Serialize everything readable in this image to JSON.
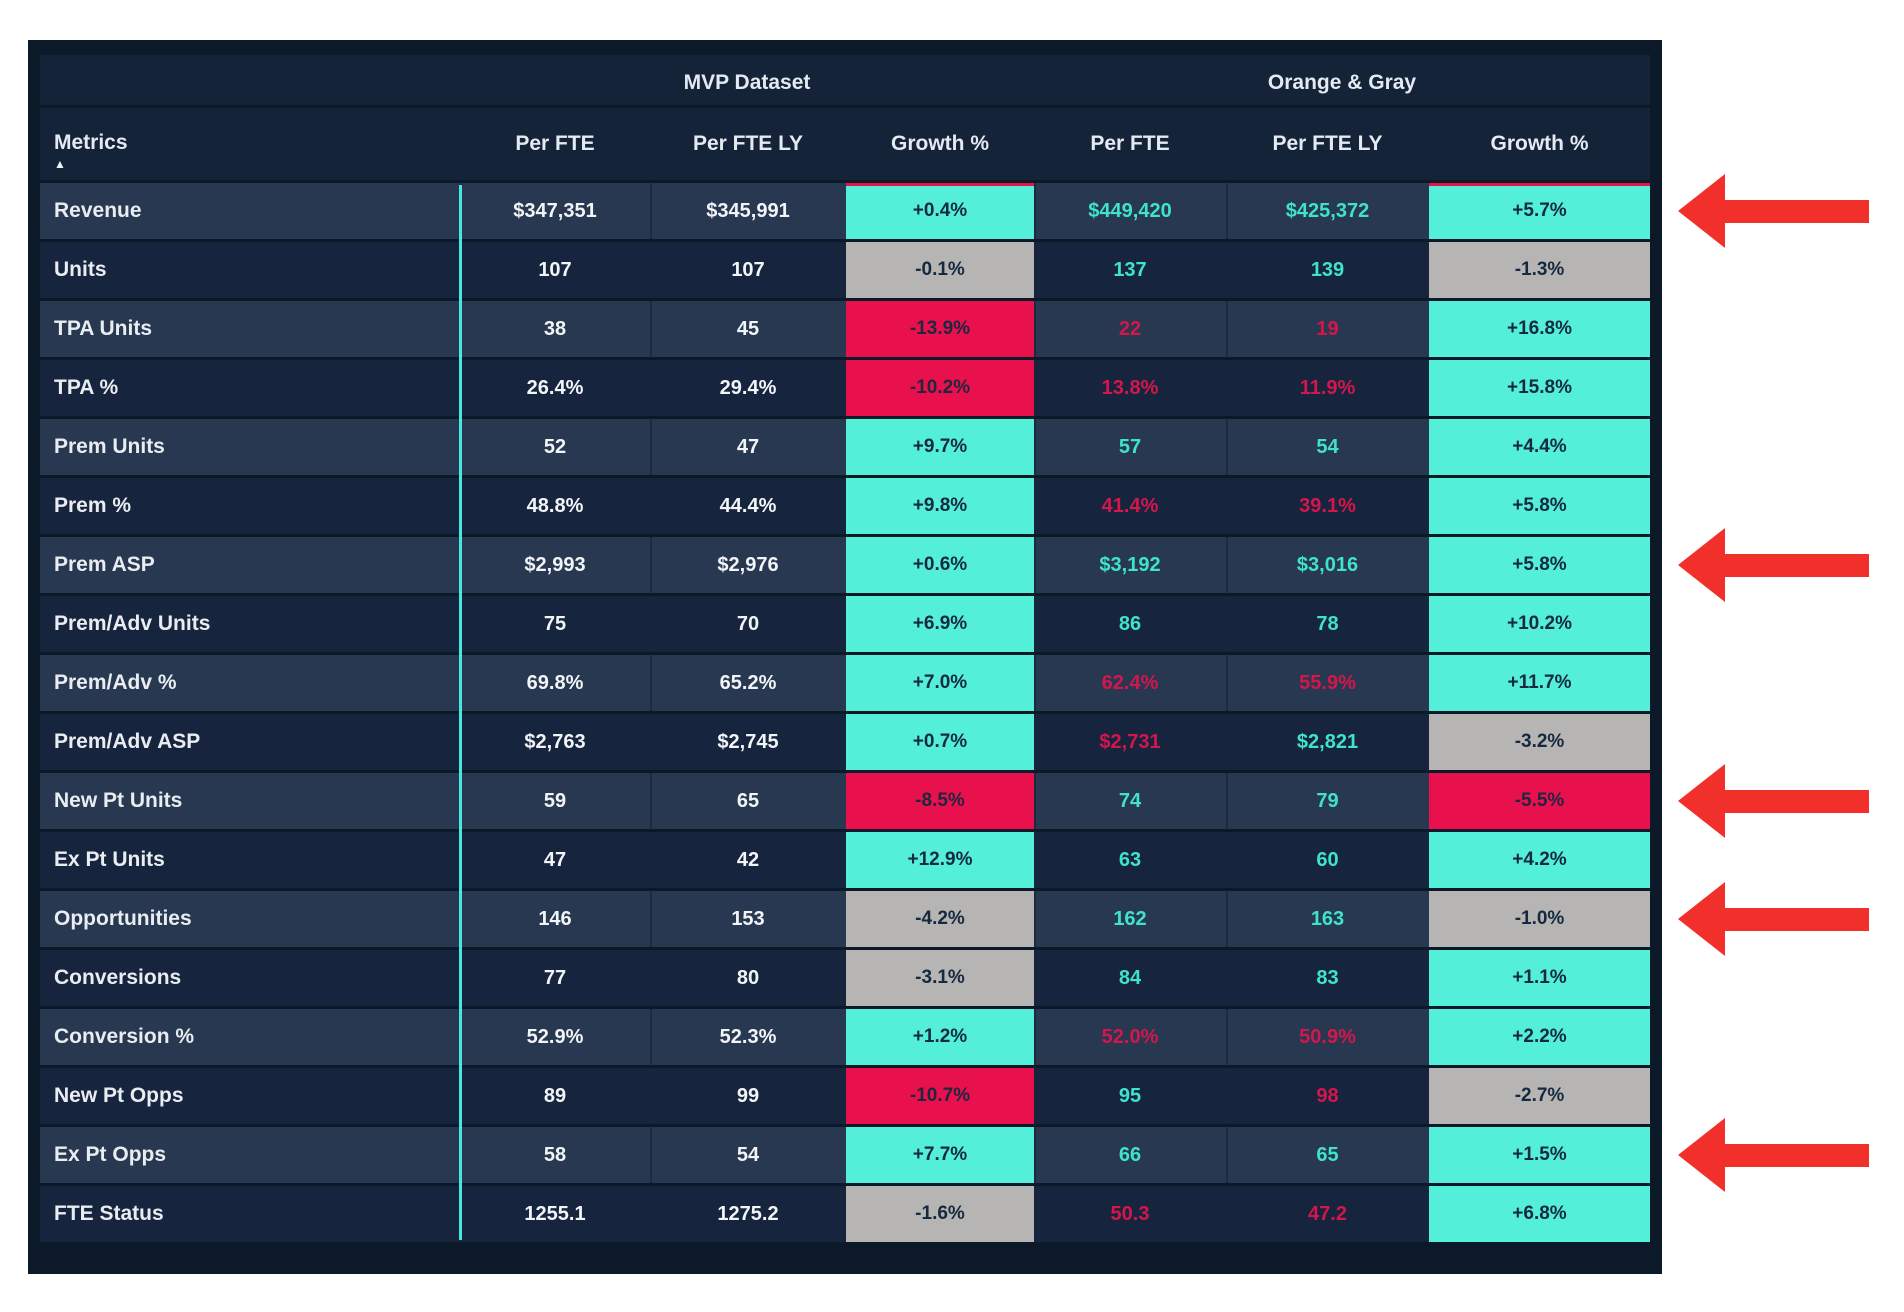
{
  "colors": {
    "table_bg": "#0c1929",
    "header_bg": "#152338",
    "row_light_bg": "#273850",
    "row_dark_bg": "#16243d",
    "growth_positive_bg": "#53efd9",
    "growth_neutral_bg": "#b7b5b3",
    "growth_negative_bg": "#e9114d",
    "value_good_text": "#3fe2cc",
    "value_bad_text": "#d4164c",
    "metric_text": "#e9edf2",
    "teal_divider": "#45e8e0",
    "arrow_red": "#f2302b"
  },
  "chart_data": {
    "type": "table",
    "metrics_header": "Metrics",
    "sort_indicator": "ascending-triangle",
    "column_groups": [
      "MVP Dataset",
      "Orange & Gray"
    ],
    "sub_columns": [
      "Per FTE",
      "Per FTE LY",
      "Growth %"
    ],
    "rows": [
      {
        "metric": "Revenue",
        "mvp_fte": "$347,351",
        "mvp_fte_ly": "$345,991",
        "mvp_growth": "+0.4%",
        "mvp_growth_state": "up",
        "og_fte": "$449,420",
        "og_fte_color": "good",
        "og_fte_ly": "$425,372",
        "og_fte_ly_color": "good",
        "og_growth": "+5.7%",
        "og_growth_state": "up",
        "arrow": true
      },
      {
        "metric": "Units",
        "mvp_fte": "107",
        "mvp_fte_ly": "107",
        "mvp_growth": "-0.1%",
        "mvp_growth_state": "flat",
        "og_fte": "137",
        "og_fte_color": "good",
        "og_fte_ly": "139",
        "og_fte_ly_color": "good",
        "og_growth": "-1.3%",
        "og_growth_state": "flat",
        "arrow": false
      },
      {
        "metric": "TPA Units",
        "mvp_fte": "38",
        "mvp_fte_ly": "45",
        "mvp_growth": "-13.9%",
        "mvp_growth_state": "down",
        "og_fte": "22",
        "og_fte_color": "bad",
        "og_fte_ly": "19",
        "og_fte_ly_color": "bad",
        "og_growth": "+16.8%",
        "og_growth_state": "up",
        "arrow": false
      },
      {
        "metric": "TPA %",
        "mvp_fte": "26.4%",
        "mvp_fte_ly": "29.4%",
        "mvp_growth": "-10.2%",
        "mvp_growth_state": "down",
        "og_fte": "13.8%",
        "og_fte_color": "bad",
        "og_fte_ly": "11.9%",
        "og_fte_ly_color": "bad",
        "og_growth": "+15.8%",
        "og_growth_state": "up",
        "arrow": false
      },
      {
        "metric": "Prem Units",
        "mvp_fte": "52",
        "mvp_fte_ly": "47",
        "mvp_growth": "+9.7%",
        "mvp_growth_state": "up",
        "og_fte": "57",
        "og_fte_color": "good",
        "og_fte_ly": "54",
        "og_fte_ly_color": "good",
        "og_growth": "+4.4%",
        "og_growth_state": "up",
        "arrow": false
      },
      {
        "metric": "Prem %",
        "mvp_fte": "48.8%",
        "mvp_fte_ly": "44.4%",
        "mvp_growth": "+9.8%",
        "mvp_growth_state": "up",
        "og_fte": "41.4%",
        "og_fte_color": "bad",
        "og_fte_ly": "39.1%",
        "og_fte_ly_color": "bad",
        "og_growth": "+5.8%",
        "og_growth_state": "up",
        "arrow": false
      },
      {
        "metric": "Prem ASP",
        "mvp_fte": "$2,993",
        "mvp_fte_ly": "$2,976",
        "mvp_growth": "+0.6%",
        "mvp_growth_state": "up",
        "og_fte": "$3,192",
        "og_fte_color": "good",
        "og_fte_ly": "$3,016",
        "og_fte_ly_color": "good",
        "og_growth": "+5.8%",
        "og_growth_state": "up",
        "arrow": true
      },
      {
        "metric": "Prem/Adv Units",
        "mvp_fte": "75",
        "mvp_fte_ly": "70",
        "mvp_growth": "+6.9%",
        "mvp_growth_state": "up",
        "og_fte": "86",
        "og_fte_color": "good",
        "og_fte_ly": "78",
        "og_fte_ly_color": "good",
        "og_growth": "+10.2%",
        "og_growth_state": "up",
        "arrow": false
      },
      {
        "metric": "Prem/Adv %",
        "mvp_fte": "69.8%",
        "mvp_fte_ly": "65.2%",
        "mvp_growth": "+7.0%",
        "mvp_growth_state": "up",
        "og_fte": "62.4%",
        "og_fte_color": "bad",
        "og_fte_ly": "55.9%",
        "og_fte_ly_color": "bad",
        "og_growth": "+11.7%",
        "og_growth_state": "up",
        "arrow": false
      },
      {
        "metric": "Prem/Adv ASP",
        "mvp_fte": "$2,763",
        "mvp_fte_ly": "$2,745",
        "mvp_growth": "+0.7%",
        "mvp_growth_state": "up",
        "og_fte": "$2,731",
        "og_fte_color": "bad",
        "og_fte_ly": "$2,821",
        "og_fte_ly_color": "good",
        "og_growth": "-3.2%",
        "og_growth_state": "flat",
        "arrow": false
      },
      {
        "metric": "New Pt Units",
        "mvp_fte": "59",
        "mvp_fte_ly": "65",
        "mvp_growth": "-8.5%",
        "mvp_growth_state": "down",
        "og_fte": "74",
        "og_fte_color": "good",
        "og_fte_ly": "79",
        "og_fte_ly_color": "good",
        "og_growth": "-5.5%",
        "og_growth_state": "down",
        "arrow": true
      },
      {
        "metric": "Ex Pt Units",
        "mvp_fte": "47",
        "mvp_fte_ly": "42",
        "mvp_growth": "+12.9%",
        "mvp_growth_state": "up",
        "og_fte": "63",
        "og_fte_color": "good",
        "og_fte_ly": "60",
        "og_fte_ly_color": "good",
        "og_growth": "+4.2%",
        "og_growth_state": "up",
        "arrow": false
      },
      {
        "metric": "Opportunities",
        "mvp_fte": "146",
        "mvp_fte_ly": "153",
        "mvp_growth": "-4.2%",
        "mvp_growth_state": "flat",
        "og_fte": "162",
        "og_fte_color": "good",
        "og_fte_ly": "163",
        "og_fte_ly_color": "good",
        "og_growth": "-1.0%",
        "og_growth_state": "flat",
        "arrow": true
      },
      {
        "metric": "Conversions",
        "mvp_fte": "77",
        "mvp_fte_ly": "80",
        "mvp_growth": "-3.1%",
        "mvp_growth_state": "flat",
        "og_fte": "84",
        "og_fte_color": "good",
        "og_fte_ly": "83",
        "og_fte_ly_color": "good",
        "og_growth": "+1.1%",
        "og_growth_state": "up",
        "arrow": false
      },
      {
        "metric": "Conversion %",
        "mvp_fte": "52.9%",
        "mvp_fte_ly": "52.3%",
        "mvp_growth": "+1.2%",
        "mvp_growth_state": "up",
        "og_fte": "52.0%",
        "og_fte_color": "bad",
        "og_fte_ly": "50.9%",
        "og_fte_ly_color": "bad",
        "og_growth": "+2.2%",
        "og_growth_state": "up",
        "arrow": false
      },
      {
        "metric": "New Pt Opps",
        "mvp_fte": "89",
        "mvp_fte_ly": "99",
        "mvp_growth": "-10.7%",
        "mvp_growth_state": "down",
        "og_fte": "95",
        "og_fte_color": "good",
        "og_fte_ly": "98",
        "og_fte_ly_color": "bad",
        "og_growth": "-2.7%",
        "og_growth_state": "flat",
        "arrow": false
      },
      {
        "metric": "Ex Pt Opps",
        "mvp_fte": "58",
        "mvp_fte_ly": "54",
        "mvp_growth": "+7.7%",
        "mvp_growth_state": "up",
        "og_fte": "66",
        "og_fte_color": "good",
        "og_fte_ly": "65",
        "og_fte_ly_color": "good",
        "og_growth": "+1.5%",
        "og_growth_state": "up",
        "arrow": true
      },
      {
        "metric": "FTE Status",
        "mvp_fte": "1255.1",
        "mvp_fte_ly": "1275.2",
        "mvp_growth": "-1.6%",
        "mvp_growth_state": "flat",
        "og_fte": "50.3",
        "og_fte_color": "bad",
        "og_fte_ly": "47.2",
        "og_fte_ly_color": "bad",
        "og_growth": "+6.8%",
        "og_growth_state": "up",
        "arrow": false
      }
    ],
    "annotated_rows": [
      "Revenue",
      "Prem ASP",
      "New Pt Units",
      "Opportunities",
      "Ex Pt Opps"
    ]
  }
}
